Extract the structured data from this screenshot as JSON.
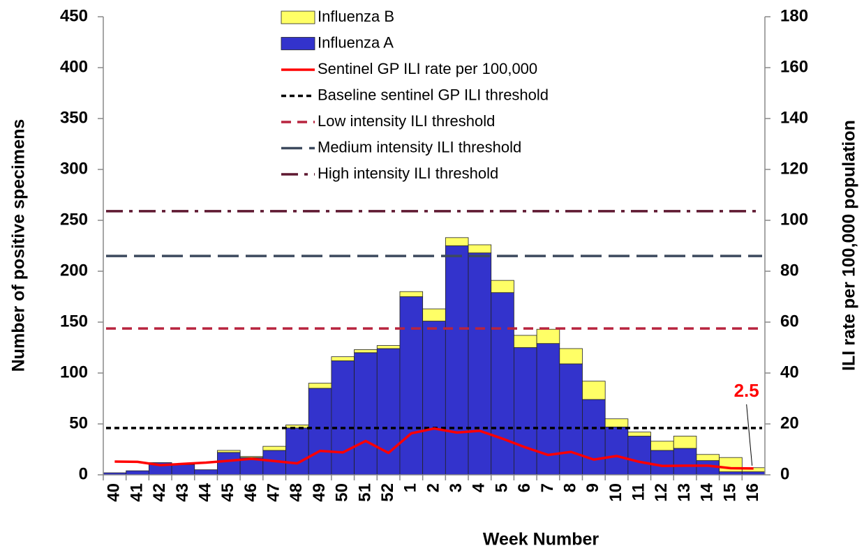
{
  "chart_data": {
    "type": "bar",
    "stacked": true,
    "y_label": "Number of positive specimens",
    "y2_label": "ILI rate per 100,000 population",
    "x_label": "Week Number",
    "categories": [
      "40",
      "41",
      "42",
      "43",
      "44",
      "45",
      "46",
      "47",
      "48",
      "49",
      "50",
      "51",
      "52",
      "1",
      "2",
      "3",
      "4",
      "5",
      "6",
      "7",
      "8",
      "9",
      "10",
      "11",
      "12",
      "13",
      "14",
      "15",
      "16"
    ],
    "series": [
      {
        "name": "Influenza A",
        "type": "bar",
        "color": "#3333cc",
        "values": [
          2,
          4,
          12,
          10,
          5,
          22,
          17,
          24,
          46,
          85,
          112,
          120,
          124,
          175,
          151,
          225,
          218,
          179,
          125,
          129,
          109,
          74,
          47,
          38,
          24,
          26,
          14,
          3,
          3
        ]
      },
      {
        "name": "Influenza B",
        "type": "bar",
        "color": "#ffff66",
        "values": [
          0,
          0,
          0,
          0,
          0,
          2,
          1,
          4,
          3,
          5,
          4,
          3,
          3,
          5,
          12,
          8,
          8,
          12,
          12,
          14,
          15,
          18,
          8,
          4,
          9,
          12,
          6,
          14,
          4
        ]
      },
      {
        "name": "Sentinel GP ILI rate per 100,000",
        "type": "line",
        "axis": "y2",
        "color": "#ff0000",
        "values": [
          5.2,
          5.1,
          3.8,
          4.3,
          4.8,
          5.5,
          6.3,
          5.4,
          4.5,
          9.4,
          8.8,
          13.3,
          8.6,
          16.3,
          18.2,
          16.6,
          17.3,
          14.2,
          10.8,
          7.8,
          9.0,
          6.0,
          7.4,
          5.1,
          3.5,
          3.6,
          3.6,
          2.6,
          2.5
        ],
        "value_labels": [
          null,
          null,
          null,
          null,
          null,
          null,
          null,
          null,
          null,
          null,
          null,
          null,
          null,
          null,
          null,
          null,
          null,
          null,
          null,
          null,
          null,
          null,
          null,
          null,
          null,
          null,
          null,
          null,
          "2.5"
        ]
      }
    ],
    "thresholds": [
      {
        "name": "Baseline sentinel GP ILI threshold",
        "axis": "y2",
        "value": 18.4,
        "color": "#000000",
        "dash": "7,5"
      },
      {
        "name": "Low intensity ILI threshold",
        "axis": "y2",
        "value": 57.5,
        "color": "#b8243f",
        "dash": "14,9"
      },
      {
        "name": "Medium intensity ILI threshold",
        "axis": "y2",
        "value": 86.0,
        "color": "#3d4a5e",
        "dash": "30,10"
      },
      {
        "name": "High intensity ILI threshold",
        "axis": "y2",
        "value": 103.6,
        "color": "#5e1830",
        "dash": "24,9,5,9"
      }
    ],
    "ylim": [
      0,
      450
    ],
    "yticks": [
      0,
      50,
      100,
      150,
      200,
      250,
      300,
      350,
      400,
      450
    ],
    "y2lim": [
      0,
      180
    ],
    "y2ticks": [
      0,
      20,
      40,
      60,
      80,
      100,
      120,
      140,
      160,
      180
    ]
  }
}
